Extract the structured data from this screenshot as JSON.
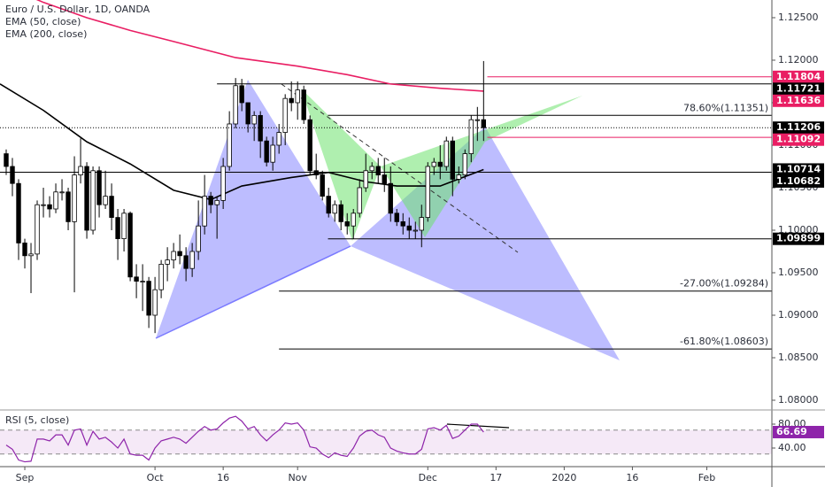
{
  "chart_data": [
    {
      "type": "candlestick",
      "title": "Euro / U.S. Dollar, 1D, OANDA",
      "xlim": [
        -1,
        123.5
      ],
      "xticks": [
        {
          "value": 3,
          "label": "Sep"
        },
        {
          "value": 24,
          "label": "Oct"
        },
        {
          "value": 35,
          "label": "16"
        },
        {
          "value": 47,
          "label": "Nov"
        },
        {
          "value": 68,
          "label": "Dec"
        },
        {
          "value": 79,
          "label": "17"
        },
        {
          "value": 90,
          "label": "2020"
        },
        {
          "value": 101,
          "label": "16"
        },
        {
          "value": 113,
          "label": "Feb"
        }
      ],
      "ylim": [
        1.07896,
        1.12708
      ],
      "yticks": [
        {
          "value": 1.125,
          "label": "1.12500"
        },
        {
          "value": 1.12,
          "label": "1.12000"
        },
        {
          "value": 1.115,
          "label": "1.11500"
        },
        {
          "value": 1.11,
          "label": "1.11000"
        },
        {
          "value": 1.105,
          "label": "1.10500"
        },
        {
          "value": 1.1,
          "label": "1.10000"
        },
        {
          "value": 1.095,
          "label": "1.09500"
        },
        {
          "value": 1.09,
          "label": "1.09000"
        },
        {
          "value": 1.085,
          "label": "1.08500"
        },
        {
          "value": 1.08,
          "label": "1.08000"
        }
      ],
      "up_color": "#ffffff",
      "down_color": "#000000",
      "open": [
        1.109,
        1.1075,
        1.1055,
        1.0985,
        1.097,
        1.0972,
        1.103,
        1.103,
        1.1025,
        1.1045,
        1.1045,
        1.101,
        1.1065,
        1.1075,
        1.1,
        1.107,
        1.103,
        1.104,
        1.1015,
        1.099,
        1.102,
        1.0945,
        1.094,
        1.094,
        1.09,
        1.093,
        1.096,
        1.0965,
        1.0975,
        1.097,
        1.0955,
        1.0975,
        1.1005,
        1.104,
        1.103,
        1.1035,
        1.1075,
        1.1125,
        1.117,
        1.115,
        1.1125,
        1.1135,
        1.1105,
        1.108,
        1.11,
        1.1115,
        1.1155,
        1.115,
        1.1165,
        1.113,
        1.107,
        1.1065,
        1.104,
        1.102,
        1.103,
        1.101,
        1.1005,
        1.102,
        1.105,
        1.107,
        1.1075,
        1.1065,
        1.1055,
        1.102,
        1.101,
        1.1005,
        1.1,
        1.1,
        1.1015,
        1.1075,
        1.108,
        1.1075,
        1.1105,
        1.106,
        1.1065,
        1.109,
        1.113,
        1.113
      ],
      "high": [
        1.1095,
        1.1085,
        1.106,
        1.099,
        1.0985,
        1.1035,
        1.105,
        1.104,
        1.1055,
        1.106,
        1.105,
        1.1087,
        1.1108,
        1.108,
        1.1075,
        1.1075,
        1.107,
        1.1055,
        1.1025,
        1.1025,
        1.1022,
        1.096,
        1.096,
        1.0945,
        1.0945,
        1.0965,
        1.098,
        1.0985,
        1.0995,
        1.098,
        1.0985,
        1.1035,
        1.1065,
        1.1045,
        1.104,
        1.1085,
        1.114,
        1.1179,
        1.1178,
        1.115,
        1.114,
        1.114,
        1.111,
        1.111,
        1.1125,
        1.116,
        1.1175,
        1.1175,
        1.117,
        1.1135,
        1.109,
        1.107,
        1.105,
        1.1035,
        1.1035,
        1.102,
        1.1025,
        1.106,
        1.109,
        1.108,
        1.1085,
        1.1085,
        1.1075,
        1.1025,
        1.102,
        1.1015,
        1.101,
        1.103,
        1.108,
        1.1085,
        1.11,
        1.111,
        1.111,
        1.1075,
        1.1095,
        1.1135,
        1.1145,
        1.1199
      ],
      "low": [
        1.1065,
        1.104,
        1.0965,
        1.0955,
        1.0926,
        1.0965,
        1.1015,
        1.1015,
        1.102,
        1.1035,
        1.1,
        1.0927,
        1.1055,
        1.099,
        1.0995,
        1.1015,
        1.1025,
        1.1,
        1.0965,
        1.0975,
        1.094,
        1.092,
        1.0905,
        1.0885,
        1.0879,
        1.092,
        1.094,
        1.0955,
        1.096,
        1.094,
        1.0945,
        1.0965,
        1.0995,
        1.102,
        1.099,
        1.1025,
        1.107,
        1.112,
        1.114,
        1.1115,
        1.1105,
        1.1085,
        1.1075,
        1.107,
        1.109,
        1.11,
        1.114,
        1.113,
        1.1125,
        1.1065,
        1.106,
        1.1035,
        1.1015,
        1.101,
        1.1,
        1.0995,
        1.099,
        1.1015,
        1.1045,
        1.106,
        1.1055,
        1.1045,
        1.101,
        1.1005,
        1.0995,
        1.099,
        1.099,
        1.098,
        1.101,
        1.1065,
        1.106,
        1.107,
        1.104,
        1.1055,
        1.106,
        1.108,
        1.1105,
        1.1105
      ],
      "close": [
        1.1075,
        1.1055,
        1.0985,
        1.097,
        1.0972,
        1.103,
        1.103,
        1.1025,
        1.1045,
        1.1045,
        1.101,
        1.1065,
        1.1075,
        1.1,
        1.107,
        1.103,
        1.104,
        1.1015,
        1.099,
        1.102,
        1.0945,
        1.094,
        1.094,
        1.09,
        1.093,
        1.096,
        1.0965,
        1.0975,
        1.097,
        1.0955,
        1.0975,
        1.1005,
        1.104,
        1.103,
        1.1035,
        1.1075,
        1.1125,
        1.117,
        1.115,
        1.1125,
        1.1135,
        1.1105,
        1.108,
        1.11,
        1.1115,
        1.1155,
        1.115,
        1.1165,
        1.113,
        1.107,
        1.1065,
        1.104,
        1.102,
        1.103,
        1.101,
        1.1005,
        1.102,
        1.105,
        1.107,
        1.1075,
        1.1065,
        1.1055,
        1.102,
        1.101,
        1.1005,
        1.1,
        1.1,
        1.1015,
        1.1075,
        1.108,
        1.1075,
        1.1105,
        1.106,
        1.1065,
        1.109,
        1.113,
        1.113,
        1.11206
      ],
      "series": [
        {
          "name": "EMA (50, close)",
          "color": "#000000",
          "x": [
            -1,
            6,
            13,
            20,
            27,
            33,
            38,
            46,
            52,
            58,
            63,
            70,
            77
          ],
          "values": [
            1.1172,
            1.1141,
            1.1104,
            1.1078,
            1.1047,
            1.1036,
            1.1052,
            1.1062,
            1.1068,
            1.1057,
            1.1052,
            1.1052,
            1.10714
          ]
        },
        {
          "name": "EMA (200, close)",
          "color": "#e91e63",
          "x": [
            -1,
            6,
            13,
            20,
            27,
            37,
            47,
            55,
            62,
            70,
            77
          ],
          "values": [
            1.129,
            1.1268,
            1.125,
            1.1235,
            1.1222,
            1.1203,
            1.1193,
            1.1183,
            1.1172,
            1.1167,
            1.11636
          ]
        }
      ],
      "levels": [
        {
          "value": 1.11804,
          "color": "#e91e63",
          "x_start": 77.6
        },
        {
          "value": 1.11721,
          "color": "#000000",
          "x_start": 34
        },
        {
          "value": 1.11092,
          "color": "#e91e63",
          "x_start": 77.6
        },
        {
          "value": 1.10682,
          "color": "#000000",
          "x_start": -1
        },
        {
          "value": 1.09899,
          "color": "#000000",
          "x_start": 51.9
        }
      ],
      "fib_levels": [
        {
          "value": 1.11351,
          "label": "78.60%(1.11351)",
          "x_start": 51.9
        },
        {
          "value": 1.09284,
          "label": "-27.00%(1.09284)",
          "x_start": 44
        },
        {
          "value": 1.08603,
          "label": "-61.80%(1.08603)",
          "x_start": 44
        }
      ]
    },
    {
      "type": "line",
      "title": "RSI (5, close)",
      "ylim": [
        11.9,
        100.7
      ],
      "yticks": [
        {
          "value": 80,
          "label": "80.00"
        },
        {
          "value": 40,
          "label": "40.00"
        }
      ],
      "band": [
        30,
        70
      ],
      "band_color": "#9c27b0",
      "series": [
        {
          "color": "#8e24aa",
          "values": [
            45,
            38,
            20,
            17,
            18,
            55,
            55,
            52,
            62,
            62,
            45,
            70,
            72,
            45,
            68,
            55,
            58,
            50,
            40,
            55,
            30,
            28,
            28,
            20,
            40,
            52,
            55,
            58,
            55,
            48,
            58,
            68,
            76,
            70,
            72,
            82,
            90,
            93,
            85,
            72,
            76,
            62,
            52,
            62,
            70,
            82,
            80,
            82,
            70,
            42,
            40,
            30,
            24,
            32,
            28,
            26,
            40,
            60,
            68,
            70,
            62,
            58,
            40,
            35,
            32,
            30,
            30,
            38,
            72,
            74,
            70,
            78,
            56,
            60,
            70,
            80,
            80,
            66.69
          ]
        }
      ]
    }
  ]
}
